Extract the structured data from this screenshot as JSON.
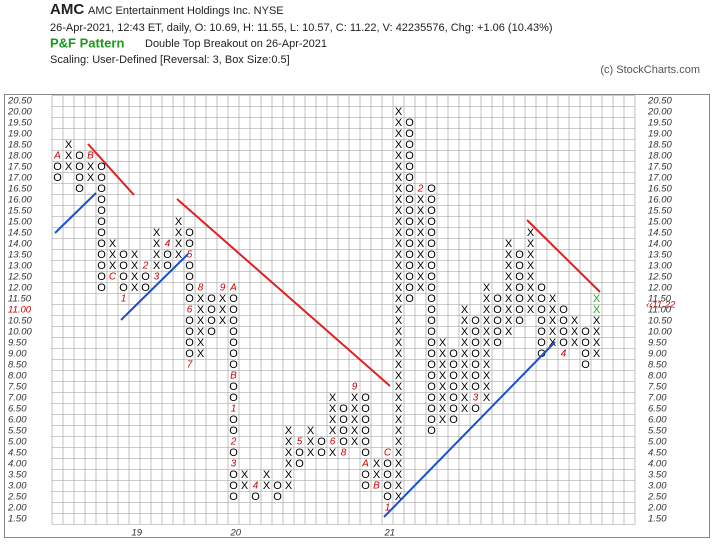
{
  "chart_data": {
    "type": "point-and-figure",
    "symbol": "AMC",
    "company": "AMC Entertainment Holdings Inc.  NYSE",
    "quote": "26-Apr-2021, 12:43 ET, daily, O: 10.69, H: 11.55, L: 10.57, C: 11.22, V: 42235576, Chg: +1.06 (10.43%)",
    "pattern_title": "P&F Pattern",
    "pattern": "Double Top Breakout on 26-Apr-2021",
    "scaling": "Scaling: User-Defined [Reversal: 3, Box Size:0.5]",
    "credit": "(c) StockCharts.com",
    "box_size": 0.5,
    "current_box": 11.0,
    "last_price": {
      "value": 11.22,
      "label": "‹‹11.22"
    },
    "breakout_from": 11.0,
    "colors": {
      "x": "#000000",
      "o": "#000000",
      "marker": "#cc0000",
      "breakout": "#22aa22",
      "current": "#cc0000"
    },
    "ylim": [
      1.5,
      20.5
    ],
    "yticks": [
      {
        "value": 1.5,
        "label": "1.50"
      },
      {
        "value": 2,
        "label": "2.00"
      },
      {
        "value": 2.5,
        "label": "2.50"
      },
      {
        "value": 3,
        "label": "3.00"
      },
      {
        "value": 3.5,
        "label": "3.50"
      },
      {
        "value": 4,
        "label": "4.00"
      },
      {
        "value": 4.5,
        "label": "4.50"
      },
      {
        "value": 5,
        "label": "5.00"
      },
      {
        "value": 5.5,
        "label": "5.50"
      },
      {
        "value": 6,
        "label": "6.00"
      },
      {
        "value": 6.5,
        "label": "6.50"
      },
      {
        "value": 7,
        "label": "7.00"
      },
      {
        "value": 7.5,
        "label": "7.50"
      },
      {
        "value": 8,
        "label": "8.00"
      },
      {
        "value": 8.5,
        "label": "8.50"
      },
      {
        "value": 9,
        "label": "9.00"
      },
      {
        "value": 9.5,
        "label": "9.50"
      },
      {
        "value": 10,
        "label": "10.00"
      },
      {
        "value": 10.5,
        "label": "10.50"
      },
      {
        "value": 11,
        "label": "11.00"
      },
      {
        "value": 11.5,
        "label": "11.50"
      },
      {
        "value": 12,
        "label": "12.00"
      },
      {
        "value": 12.5,
        "label": "12.50"
      },
      {
        "value": 13,
        "label": "13.00"
      },
      {
        "value": 13.5,
        "label": "13.50"
      },
      {
        "value": 14,
        "label": "14.00"
      },
      {
        "value": 14.5,
        "label": "14.50"
      },
      {
        "value": 15,
        "label": "15.00"
      },
      {
        "value": 15.5,
        "label": "15.50"
      },
      {
        "value": 16,
        "label": "16.00"
      },
      {
        "value": 16.5,
        "label": "16.50"
      },
      {
        "value": 17,
        "label": "17.00"
      },
      {
        "value": 17.5,
        "label": "17.50"
      },
      {
        "value": 18,
        "label": "18.00"
      },
      {
        "value": 18.5,
        "label": "18.50"
      },
      {
        "value": 19,
        "label": "19.00"
      },
      {
        "value": 19.5,
        "label": "19.50"
      },
      {
        "value": 20,
        "label": "20.00"
      },
      {
        "value": 20.5,
        "label": "20.50"
      }
    ],
    "x_labels": [
      {
        "column": 7,
        "label": "19"
      },
      {
        "column": 16,
        "label": "20"
      },
      {
        "column": 30,
        "label": "21"
      }
    ],
    "columns": [
      {
        "type": "O",
        "low": 17,
        "high": 18,
        "marks": [
          {
            "price": 18,
            "label": "A"
          }
        ]
      },
      {
        "type": "X",
        "low": 17.5,
        "high": 18.5
      },
      {
        "type": "O",
        "low": 16.5,
        "high": 18
      },
      {
        "type": "X",
        "low": 17,
        "high": 18,
        "marks": [
          {
            "price": 18,
            "label": "B"
          }
        ]
      },
      {
        "type": "O",
        "low": 12,
        "high": 17.5
      },
      {
        "type": "X",
        "low": 12.5,
        "high": 14,
        "marks": [
          {
            "price": 12.5,
            "label": "C"
          }
        ]
      },
      {
        "type": "O",
        "low": 11.5,
        "high": 13.5,
        "marks": [
          {
            "price": 11.5,
            "label": "1"
          }
        ]
      },
      {
        "type": "X",
        "low": 12,
        "high": 13.5
      },
      {
        "type": "O",
        "low": 12,
        "high": 13,
        "marks": [
          {
            "price": 13,
            "label": "2"
          }
        ]
      },
      {
        "type": "X",
        "low": 12.5,
        "high": 14.5,
        "marks": [
          {
            "price": 12.5,
            "label": "3"
          }
        ]
      },
      {
        "type": "O",
        "low": 13,
        "high": 14,
        "marks": [
          {
            "price": 14,
            "label": "4"
          }
        ]
      },
      {
        "type": "X",
        "low": 13.5,
        "high": 15
      },
      {
        "type": "O",
        "low": 8.5,
        "high": 14.5,
        "marks": [
          {
            "price": 13.5,
            "label": "5"
          },
          {
            "price": 11,
            "label": "6"
          },
          {
            "price": 8.5,
            "label": "7"
          }
        ]
      },
      {
        "type": "X",
        "low": 9,
        "high": 12,
        "marks": [
          {
            "price": 12,
            "label": "8"
          }
        ]
      },
      {
        "type": "O",
        "low": 10,
        "high": 11.5
      },
      {
        "type": "X",
        "low": 10.5,
        "high": 12,
        "marks": [
          {
            "price": 12,
            "label": "9"
          }
        ]
      },
      {
        "type": "O",
        "low": 2.5,
        "high": 12,
        "marks": [
          {
            "price": 12,
            "label": "A"
          },
          {
            "price": 8,
            "label": "B"
          },
          {
            "price": 6.5,
            "label": "1"
          },
          {
            "price": 5,
            "label": "2"
          },
          {
            "price": 4,
            "label": "3"
          }
        ]
      },
      {
        "type": "X",
        "low": 3,
        "high": 3.5
      },
      {
        "type": "O",
        "low": 2.5,
        "high": 3,
        "marks": [
          {
            "price": 3,
            "label": "4"
          }
        ]
      },
      {
        "type": "X",
        "low": 3,
        "high": 3.5
      },
      {
        "type": "O",
        "low": 2.5,
        "high": 3
      },
      {
        "type": "X",
        "low": 3,
        "high": 5.5
      },
      {
        "type": "O",
        "low": 4,
        "high": 5,
        "marks": [
          {
            "price": 5,
            "label": "5"
          }
        ]
      },
      {
        "type": "X",
        "low": 4.5,
        "high": 5.5
      },
      {
        "type": "O",
        "low": 4.5,
        "high": 5
      },
      {
        "type": "X",
        "low": 4.5,
        "high": 7,
        "marks": [
          {
            "price": 5,
            "label": "6"
          }
        ]
      },
      {
        "type": "O",
        "low": 4.5,
        "high": 6.5,
        "marks": [
          {
            "price": 4.5,
            "label": "8"
          }
        ]
      },
      {
        "type": "X",
        "low": 5,
        "high": 7.5,
        "marks": [
          {
            "price": 7.5,
            "label": "9"
          }
        ]
      },
      {
        "type": "O",
        "low": 3,
        "high": 7,
        "marks": [
          {
            "price": 4,
            "label": "A"
          }
        ]
      },
      {
        "type": "X",
        "low": 3,
        "high": 4,
        "marks": [
          {
            "price": 3,
            "label": "B"
          }
        ]
      },
      {
        "type": "O",
        "low": 2,
        "high": 4.5,
        "marks": [
          {
            "price": 4.5,
            "label": "C"
          },
          {
            "price": 2,
            "label": "1"
          }
        ]
      },
      {
        "type": "X",
        "low": 2.5,
        "high": 20
      },
      {
        "type": "O",
        "low": 11.5,
        "high": 19.5
      },
      {
        "type": "X",
        "low": 12,
        "high": 16.5,
        "marks": [
          {
            "price": 16.5,
            "label": "2"
          }
        ]
      },
      {
        "type": "O",
        "low": 5.5,
        "high": 16.5
      },
      {
        "type": "X",
        "low": 6,
        "high": 9.5
      },
      {
        "type": "O",
        "low": 6,
        "high": 9
      },
      {
        "type": "X",
        "low": 6.5,
        "high": 11
      },
      {
        "type": "O",
        "low": 6.5,
        "high": 10.5,
        "marks": [
          {
            "price": 7,
            "label": "3"
          }
        ]
      },
      {
        "type": "X",
        "low": 7,
        "high": 12
      },
      {
        "type": "O",
        "low": 9.5,
        "high": 11.5
      },
      {
        "type": "X",
        "low": 10,
        "high": 14
      },
      {
        "type": "O",
        "low": 10.5,
        "high": 13.5
      },
      {
        "type": "X",
        "low": 11,
        "high": 14.5
      },
      {
        "type": "O",
        "low": 9,
        "high": 12
      },
      {
        "type": "X",
        "low": 9.5,
        "high": 11.5
      },
      {
        "type": "O",
        "low": 9,
        "high": 11,
        "marks": [
          {
            "price": 9,
            "label": "4"
          }
        ]
      },
      {
        "type": "X",
        "low": 9.5,
        "high": 10.5
      },
      {
        "type": "O",
        "low": 8.5,
        "high": 10
      },
      {
        "type": "X",
        "low": 9,
        "high": 11.5
      }
    ]
  }
}
